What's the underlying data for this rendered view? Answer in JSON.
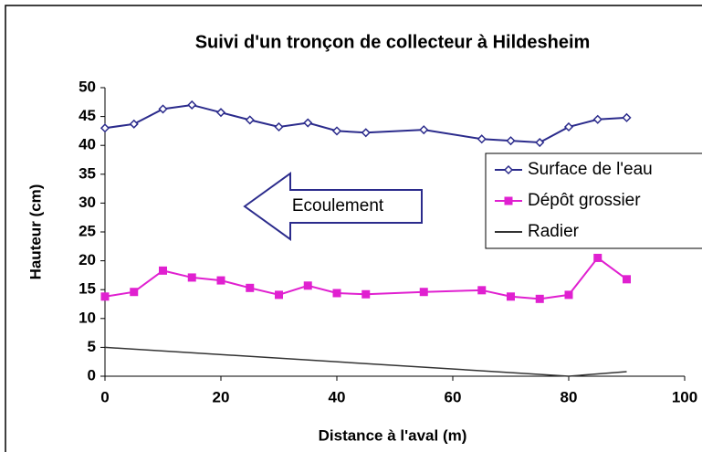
{
  "chart_data": {
    "type": "line",
    "title": "Suivi d'un tronçon de collecteur à Hildesheim",
    "xlabel": "Distance à l'aval (m)",
    "ylabel": "Hauteur (cm)",
    "annotation": "Ecoulement",
    "xlim": [
      0,
      100
    ],
    "xticks": [
      0,
      20,
      40,
      60,
      80,
      100
    ],
    "ylim": [
      0,
      50
    ],
    "yticks": [
      0,
      5,
      10,
      15,
      20,
      25,
      30,
      35,
      40,
      45,
      50
    ],
    "grid": false,
    "legend": "right",
    "series": [
      {
        "name": "Surface de l'eau",
        "color": "#2b2b8c",
        "marker": "diamond",
        "x": [
          0,
          5,
          10,
          15,
          20,
          25,
          30,
          35,
          40,
          45,
          55,
          65,
          70,
          75,
          80,
          85,
          90
        ],
        "values": [
          43,
          43.7,
          46.3,
          47,
          45.7,
          44.4,
          43.2,
          43.9,
          42.5,
          42.2,
          42.7,
          41.1,
          40.8,
          40.5,
          43.2,
          44.5,
          44.8
        ]
      },
      {
        "name": "Dépôt grossier",
        "color": "#e020d0",
        "marker": "square",
        "x": [
          0,
          5,
          10,
          15,
          20,
          25,
          30,
          35,
          40,
          45,
          55,
          65,
          70,
          75,
          80,
          85,
          90
        ],
        "values": [
          13.8,
          14.6,
          18.3,
          17.1,
          16.6,
          15.3,
          14.1,
          15.7,
          14.4,
          14.2,
          14.6,
          14.9,
          13.8,
          13.4,
          14.1,
          20.5,
          16.8
        ]
      },
      {
        "name": "Radier",
        "color": "#333333",
        "marker": "none",
        "x": [
          0,
          80,
          90
        ],
        "values": [
          5,
          0,
          0.8
        ]
      }
    ]
  }
}
